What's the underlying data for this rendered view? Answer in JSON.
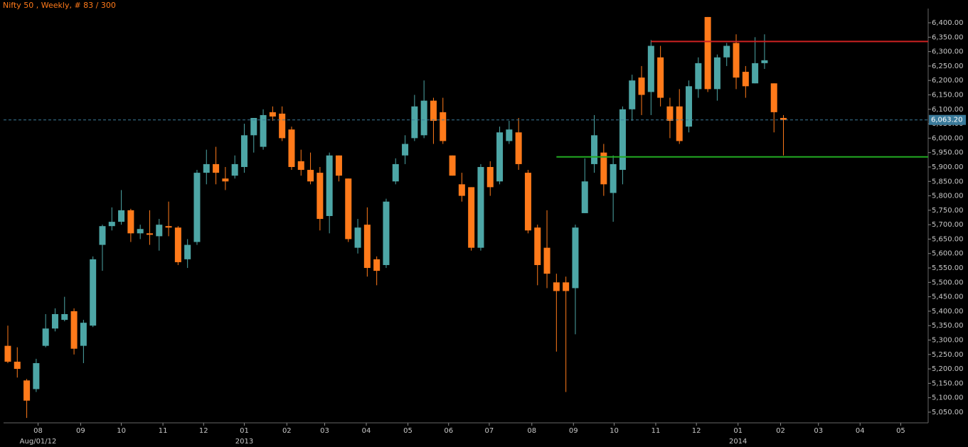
{
  "chart_data": {
    "type": "candlestick",
    "title": "Nifty 50 , Weekly, # 83 / 300",
    "up_color": "#4da6a6",
    "down_color": "#ff7a1a",
    "open": [
      5280,
      5225,
      5160,
      5130,
      5280,
      5340,
      5370,
      5400,
      5280,
      5350,
      5630,
      5695,
      5710,
      5750,
      5670,
      5670,
      5660,
      5695,
      5690,
      5580,
      5640,
      5880,
      5910,
      5860,
      5870,
      5900,
      6010,
      5970,
      6090,
      6085,
      6030,
      5920,
      5890,
      5880,
      5730,
      5940,
      5860,
      5620,
      5700,
      5580,
      5560,
      5850,
      5940,
      6000,
      6010,
      6130,
      6090,
      5940,
      5840,
      5830,
      5620,
      5900,
      5850,
      5990,
      6020,
      5880,
      5690,
      5620,
      5500,
      5500,
      5480,
      5740,
      5910,
      5950,
      5810,
      5890,
      6100,
      6210,
      6160,
      6280,
      6110,
      6110,
      6040,
      6170,
      6420,
      6170,
      6280,
      6330,
      6230,
      6190,
      6260,
      6190,
      6070
    ],
    "high": [
      5350,
      5275,
      5165,
      5235,
      5390,
      5410,
      5450,
      5410,
      5370,
      5590,
      5700,
      5760,
      5820,
      5755,
      5700,
      5750,
      5720,
      5780,
      5695,
      5650,
      5890,
      5960,
      5970,
      5900,
      5940,
      6050,
      6070,
      6100,
      6110,
      6110,
      6040,
      5960,
      5950,
      5900,
      5950,
      5940,
      5860,
      5720,
      5760,
      5590,
      5790,
      5930,
      6010,
      6150,
      6200,
      6140,
      6140,
      5940,
      5880,
      5830,
      5910,
      5920,
      6040,
      6060,
      6070,
      5890,
      5700,
      5750,
      5530,
      5520,
      5700,
      5930,
      6080,
      5980,
      5940,
      6110,
      6220,
      6250,
      6340,
      6320,
      6140,
      6170,
      6200,
      6280,
      6420,
      6290,
      6330,
      6360,
      6250,
      6350,
      6360,
      6190,
      6080
    ],
    "low": [
      5220,
      5170,
      5030,
      5120,
      5275,
      5330,
      5365,
      5250,
      5220,
      5345,
      5540,
      5680,
      5700,
      5640,
      5650,
      5630,
      5610,
      5660,
      5560,
      5550,
      5630,
      5840,
      5840,
      5820,
      5860,
      5880,
      5950,
      5960,
      6060,
      5990,
      5890,
      5870,
      5840,
      5680,
      5670,
      5850,
      5640,
      5600,
      5520,
      5490,
      5550,
      5840,
      5910,
      5990,
      6000,
      5980,
      5980,
      5870,
      5780,
      5610,
      5610,
      5800,
      5840,
      5980,
      5890,
      5670,
      5490,
      5480,
      5260,
      5120,
      5320,
      5740,
      5880,
      5800,
      5710,
      5840,
      6060,
      6080,
      6080,
      6110,
      6000,
      5980,
      6020,
      6140,
      6160,
      6130,
      6250,
      6170,
      6140,
      6190,
      6240,
      6020,
      5940
    ],
    "close": [
      5225,
      5200,
      5090,
      5220,
      5340,
      5390,
      5390,
      5270,
      5360,
      5580,
      5695,
      5710,
      5750,
      5670,
      5685,
      5665,
      5700,
      5690,
      5570,
      5630,
      5880,
      5910,
      5880,
      5850,
      5910,
      6010,
      6070,
      6080,
      6075,
      6000,
      5900,
      5890,
      5850,
      5720,
      5940,
      5870,
      5650,
      5690,
      5550,
      5540,
      5780,
      5910,
      5980,
      6110,
      6130,
      6060,
      5990,
      5870,
      5800,
      5620,
      5900,
      5830,
      6020,
      6030,
      5910,
      5680,
      5560,
      5530,
      5470,
      5470,
      5690,
      5850,
      6010,
      5840,
      5910,
      6100,
      6200,
      6150,
      6320,
      6140,
      6060,
      5990,
      6180,
      6260,
      6170,
      6280,
      6320,
      6210,
      6180,
      6260,
      6270,
      6090,
      6063.2
    ],
    "xlim": [
      -0.45,
      97.3
    ],
    "xticks": [
      {
        "value": 3.2,
        "label": "08"
      },
      {
        "value": 7.7,
        "label": "09"
      },
      {
        "value": 12.0,
        "label": "10"
      },
      {
        "value": 16.4,
        "label": "11"
      },
      {
        "value": 20.7,
        "label": "12"
      },
      {
        "value": 25.0,
        "label": "01"
      },
      {
        "value": 29.5,
        "label": "02"
      },
      {
        "value": 33.5,
        "label": "03"
      },
      {
        "value": 37.9,
        "label": "04"
      },
      {
        "value": 42.3,
        "label": "05"
      },
      {
        "value": 46.6,
        "label": "06"
      },
      {
        "value": 50.9,
        "label": "07"
      },
      {
        "value": 55.4,
        "label": "08"
      },
      {
        "value": 59.8,
        "label": "09"
      },
      {
        "value": 64.1,
        "label": "10"
      },
      {
        "value": 68.5,
        "label": "11"
      },
      {
        "value": 72.8,
        "label": "12"
      },
      {
        "value": 77.2,
        "label": "01"
      },
      {
        "value": 81.7,
        "label": "02"
      },
      {
        "value": 85.7,
        "label": "03"
      },
      {
        "value": 90.1,
        "label": "04"
      },
      {
        "value": 94.4,
        "label": "05"
      }
    ],
    "xlabels2": [
      {
        "value": 3.2,
        "label": "Aug/01/12"
      },
      {
        "value": 25.0,
        "label": "2013"
      },
      {
        "value": 77.2,
        "label": "2014"
      }
    ],
    "ylim": [
      5013,
      6442
    ],
    "yticks": [
      {
        "value": 5050,
        "label": "5,050.00"
      },
      {
        "value": 5100,
        "label": "5,100.00"
      },
      {
        "value": 5150,
        "label": "5,150.00"
      },
      {
        "value": 5200,
        "label": "5,200.00"
      },
      {
        "value": 5250,
        "label": "5,250.00"
      },
      {
        "value": 5300,
        "label": "5,300.00"
      },
      {
        "value": 5350,
        "label": "5,350.00"
      },
      {
        "value": 5400,
        "label": "5,400.00"
      },
      {
        "value": 5450,
        "label": "5,450.00"
      },
      {
        "value": 5500,
        "label": "5,500.00"
      },
      {
        "value": 5550,
        "label": "5,550.00"
      },
      {
        "value": 5600,
        "label": "5,600.00"
      },
      {
        "value": 5650,
        "label": "5,650.00"
      },
      {
        "value": 5700,
        "label": "5,700.00"
      },
      {
        "value": 5750,
        "label": "5,750.00"
      },
      {
        "value": 5800,
        "label": "5,800.00"
      },
      {
        "value": 5850,
        "label": "5,850.00"
      },
      {
        "value": 5900,
        "label": "5,900.00"
      },
      {
        "value": 5950,
        "label": "5,950.00"
      },
      {
        "value": 6000,
        "label": "6,000.00"
      },
      {
        "value": 6050,
        "label": "6,050.00"
      },
      {
        "value": 6100,
        "label": "6,100.00"
      },
      {
        "value": 6150,
        "label": "6,150.00"
      },
      {
        "value": 6200,
        "label": "6,200.00"
      },
      {
        "value": 6250,
        "label": "6,250.00"
      },
      {
        "value": 6300,
        "label": "6,300.00"
      },
      {
        "value": 6350,
        "label": "6,350.00"
      },
      {
        "value": 6400,
        "label": "6,400.00"
      }
    ],
    "levels": [
      {
        "value": 6335,
        "from": 68,
        "color": "#cc2222"
      },
      {
        "value": 5935,
        "from": 58,
        "color": "#22aa22"
      }
    ],
    "last_price": {
      "value": 6063.2,
      "label": "6,063.20",
      "color": "#3a7a9a"
    }
  }
}
